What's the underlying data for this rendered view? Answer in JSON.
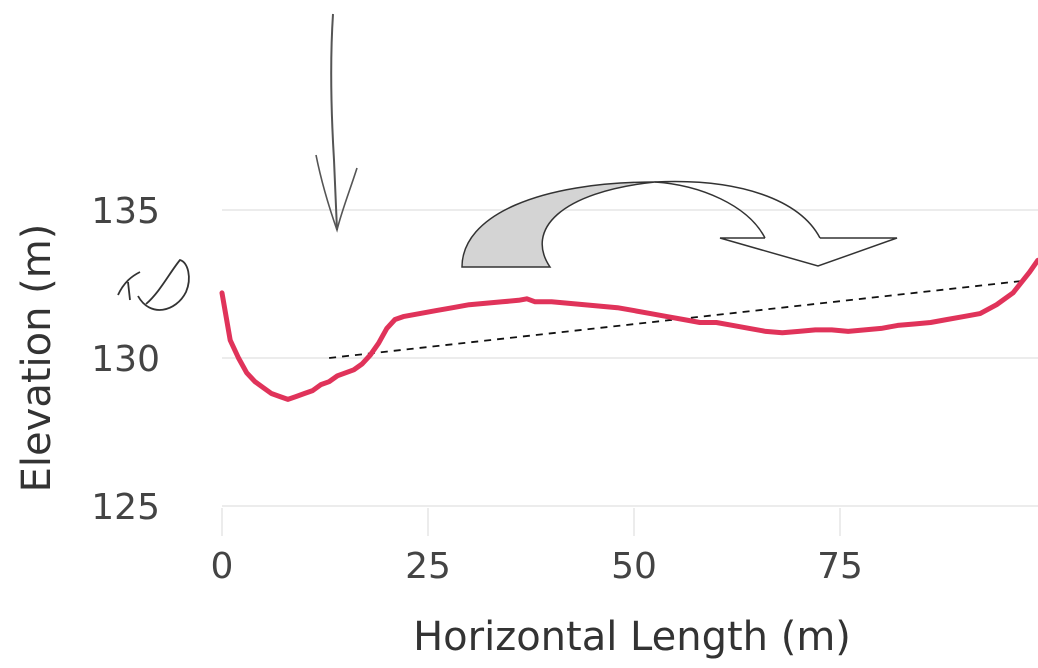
{
  "chart_data": {
    "type": "line",
    "xlabel": "Horizontal Length (m)",
    "ylabel": "Elevation (m)",
    "xlim": [
      0,
      99
    ],
    "ylim": [
      125,
      135
    ],
    "x_ticks": [
      "0",
      "25",
      "50",
      "75"
    ],
    "y_ticks": [
      "125",
      "130",
      "135"
    ],
    "grid": true,
    "colors": {
      "profile": "#e0335a",
      "grid": "#ececec",
      "trend": "#111111",
      "arrow_fill": "#d4d4d4"
    },
    "series": [
      {
        "x": [
          0,
          1,
          2,
          3,
          4,
          5,
          6,
          7,
          8,
          9,
          10,
          11,
          12,
          13,
          14,
          15,
          16,
          17,
          18,
          19,
          20,
          21,
          22,
          24,
          26,
          28,
          30,
          32,
          34,
          36,
          37,
          38,
          40,
          42,
          44,
          46,
          48,
          50,
          52,
          54,
          56,
          58,
          60,
          62,
          64,
          66,
          68,
          70,
          72,
          74,
          76,
          78,
          80,
          82,
          84,
          86,
          88,
          90,
          92,
          94,
          96,
          98,
          99
        ],
        "y": [
          132.2,
          130.6,
          130.0,
          129.5,
          129.2,
          129.0,
          128.8,
          128.7,
          128.6,
          128.7,
          128.8,
          128.9,
          129.1,
          129.2,
          129.4,
          129.5,
          129.6,
          129.8,
          130.1,
          130.5,
          131.0,
          131.3,
          131.4,
          131.5,
          131.6,
          131.7,
          131.8,
          131.85,
          131.9,
          131.95,
          132.0,
          131.9,
          131.9,
          131.85,
          131.8,
          131.75,
          131.7,
          131.6,
          131.5,
          131.4,
          131.3,
          131.2,
          131.2,
          131.1,
          131.0,
          130.9,
          130.85,
          130.9,
          130.95,
          130.95,
          130.9,
          130.95,
          131.0,
          131.1,
          131.15,
          131.2,
          131.3,
          131.4,
          131.5,
          131.8,
          132.2,
          132.9,
          133.3
        ]
      }
    ],
    "trend_line": {
      "x": [
        13,
        97
      ],
      "y": [
        130.0,
        132.6
      ]
    }
  }
}
